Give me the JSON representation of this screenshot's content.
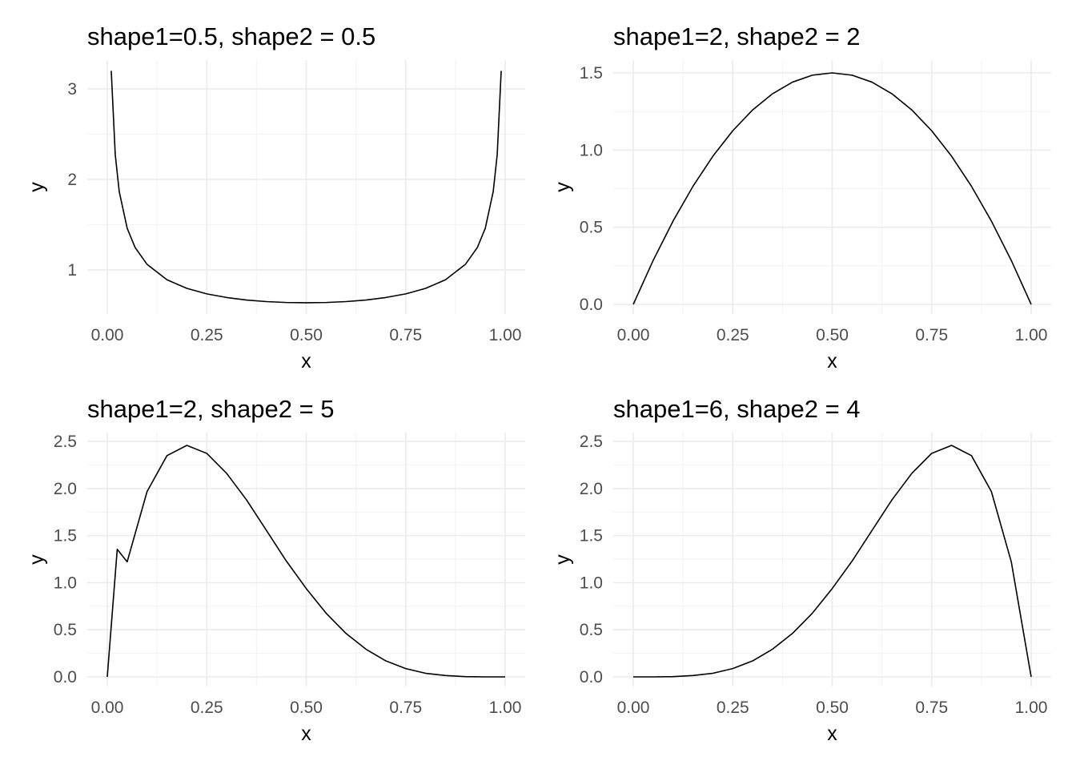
{
  "chart_data": [
    {
      "type": "line",
      "title": "shape1=0.5, shape2 = 0.5",
      "xlabel": "x",
      "ylabel": "y",
      "shape1": 0.5,
      "shape2": 0.5,
      "xlim": [
        0,
        1
      ],
      "ylim": [
        0.6366,
        3.3
      ],
      "x_ticks": [
        0,
        0.25,
        0.5,
        0.75,
        1
      ],
      "x_tick_labels": [
        "0.00",
        "0.25",
        "0.50",
        "0.75",
        "1.00"
      ],
      "y_ticks": [
        1,
        2,
        3
      ],
      "y_tick_labels": [
        "1",
        "2",
        "3"
      ],
      "x": [
        0.01,
        0.02,
        0.03,
        0.05,
        0.07,
        0.1,
        0.15,
        0.2,
        0.25,
        0.3,
        0.35,
        0.4,
        0.45,
        0.5,
        0.55,
        0.6,
        0.65,
        0.7,
        0.75,
        0.8,
        0.85,
        0.9,
        0.93,
        0.95,
        0.97,
        0.98,
        0.99
      ],
      "y": [
        3.199,
        2.274,
        1.866,
        1.46,
        1.247,
        1.061,
        0.891,
        0.796,
        0.735,
        0.695,
        0.667,
        0.65,
        0.64,
        0.637,
        0.64,
        0.65,
        0.667,
        0.695,
        0.735,
        0.796,
        0.891,
        1.061,
        1.247,
        1.46,
        1.866,
        2.274,
        3.199
      ],
      "grid": true
    },
    {
      "type": "line",
      "title": "shape1=2, shape2 = 2",
      "xlabel": "x",
      "ylabel": "y",
      "shape1": 2,
      "shape2": 2,
      "xlim": [
        0,
        1
      ],
      "ylim": [
        0,
        1.5
      ],
      "x_ticks": [
        0,
        0.25,
        0.5,
        0.75,
        1
      ],
      "x_tick_labels": [
        "0.00",
        "0.25",
        "0.50",
        "0.75",
        "1.00"
      ],
      "y_ticks": [
        0,
        0.5,
        1,
        1.5
      ],
      "y_tick_labels": [
        "0.0",
        "0.5",
        "1.0",
        "1.5"
      ],
      "x": [
        0,
        0.05,
        0.1,
        0.15,
        0.2,
        0.25,
        0.3,
        0.35,
        0.4,
        0.45,
        0.5,
        0.55,
        0.6,
        0.65,
        0.7,
        0.75,
        0.8,
        0.85,
        0.9,
        0.95,
        1
      ],
      "y": [
        0,
        0.285,
        0.54,
        0.765,
        0.96,
        1.125,
        1.26,
        1.365,
        1.44,
        1.485,
        1.5,
        1.485,
        1.44,
        1.365,
        1.26,
        1.125,
        0.96,
        0.765,
        0.54,
        0.285,
        0
      ],
      "grid": true
    },
    {
      "type": "line",
      "title": "shape1=2, shape2 = 5",
      "xlabel": "x",
      "ylabel": "y",
      "shape1": 2,
      "shape2": 5,
      "xlim": [
        0,
        1
      ],
      "ylim": [
        0,
        2.458
      ],
      "x_ticks": [
        0,
        0.25,
        0.5,
        0.75,
        1
      ],
      "x_tick_labels": [
        "0.00",
        "0.25",
        "0.50",
        "0.75",
        "1.00"
      ],
      "y_ticks": [
        0,
        0.5,
        1,
        1.5,
        2,
        2.5
      ],
      "y_tick_labels": [
        "0.0",
        "0.5",
        "1.0",
        "1.5",
        "2.0",
        "2.5"
      ],
      "x": [
        0,
        0.025,
        0.05,
        0.1,
        0.15,
        0.2,
        0.25,
        0.3,
        0.35,
        0.4,
        0.45,
        0.5,
        0.55,
        0.6,
        0.65,
        0.7,
        0.75,
        0.8,
        0.85,
        0.9,
        0.95,
        1
      ],
      "y": [
        0,
        1.355,
        1.222,
        1.968,
        2.349,
        2.458,
        2.373,
        2.161,
        1.879,
        1.555,
        1.23,
        0.938,
        0.676,
        0.461,
        0.294,
        0.17,
        0.088,
        0.038,
        0.014,
        0.003,
        0,
        0
      ],
      "grid": true
    },
    {
      "type": "line",
      "title": "shape1=6, shape2 = 4",
      "xlabel": "x",
      "ylabel": "y",
      "shape1": 6,
      "shape2": 4,
      "xlim": [
        0,
        1
      ],
      "ylim": [
        0,
        2.458
      ],
      "x_ticks": [
        0,
        0.25,
        0.5,
        0.75,
        1
      ],
      "x_tick_labels": [
        "0.00",
        "0.25",
        "0.50",
        "0.75",
        "1.00"
      ],
      "y_ticks": [
        0,
        0.5,
        1,
        1.5,
        2,
        2.5
      ],
      "y_tick_labels": [
        "0.0",
        "0.5",
        "1.0",
        "1.5",
        "2.0",
        "2.5"
      ],
      "x": [
        0,
        0.05,
        0.1,
        0.15,
        0.2,
        0.25,
        0.3,
        0.35,
        0.4,
        0.45,
        0.5,
        0.55,
        0.6,
        0.65,
        0.7,
        0.75,
        0.8,
        0.85,
        0.9,
        0.95,
        1
      ],
      "y": [
        0,
        0,
        0.003,
        0.014,
        0.038,
        0.088,
        0.17,
        0.294,
        0.461,
        0.676,
        0.938,
        1.23,
        1.555,
        1.879,
        2.161,
        2.373,
        2.458,
        2.349,
        1.968,
        1.222,
        0
      ],
      "grid": true
    }
  ]
}
